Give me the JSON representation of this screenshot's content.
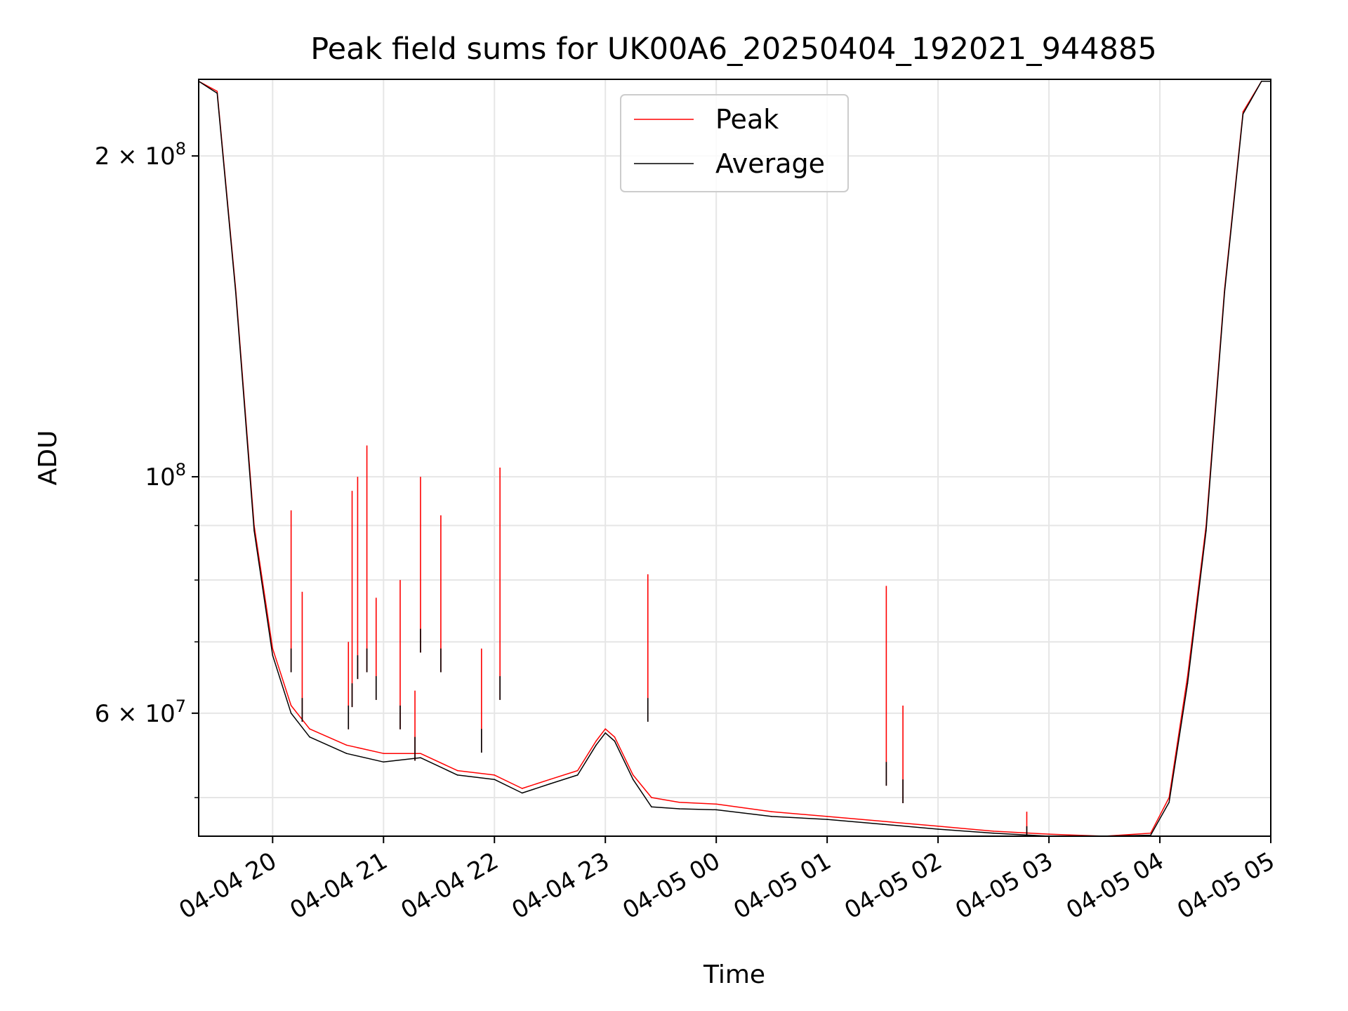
{
  "chart_data": {
    "type": "line",
    "title": "Peak field sums for UK00A6_20250404_192021_944885",
    "xlabel": "Time",
    "ylabel": "ADU",
    "yscale": "log",
    "ylim": [
      46000000,
      236000000
    ],
    "xlim": [
      "2025-04-04 19:20",
      "2025-04-05 05:00"
    ],
    "grid": true,
    "legend_position": "top-center",
    "x_tick_labels": [
      "04-04 20",
      "04-04 21",
      "04-04 22",
      "04-04 23",
      "04-05 00",
      "04-05 01",
      "04-05 02",
      "04-05 03",
      "04-05 04",
      "04-05 05"
    ],
    "x_ticks": [
      "2025-04-04 20:00",
      "2025-04-04 21:00",
      "2025-04-04 22:00",
      "2025-04-04 23:00",
      "2025-04-05 00:00",
      "2025-04-05 01:00",
      "2025-04-05 02:00",
      "2025-04-05 03:00",
      "2025-04-05 04:00",
      "2025-04-05 05:00"
    ],
    "y_major_ticks": [
      {
        "value": 200000000,
        "mantissa": "2",
        "times": "×",
        "base": "10",
        "exp": "8"
      },
      {
        "value": 100000000,
        "mantissa": "",
        "times": "",
        "base": "10",
        "exp": "8"
      },
      {
        "value": 60000000,
        "mantissa": "6",
        "times": "×",
        "base": "10",
        "exp": "7"
      }
    ],
    "y_minor_ticks": [
      50000000,
      70000000,
      80000000,
      90000000
    ],
    "series": [
      {
        "name": "Peak",
        "color": "#ff0000",
        "x": [
          "2025-04-04 19:20",
          "2025-04-04 19:30",
          "2025-04-04 19:40",
          "2025-04-04 19:50",
          "2025-04-04 20:00",
          "2025-04-04 20:10",
          "2025-04-04 20:20",
          "2025-04-04 20:40",
          "2025-04-04 21:00",
          "2025-04-04 21:20",
          "2025-04-04 21:40",
          "2025-04-04 22:00",
          "2025-04-04 22:15",
          "2025-04-04 22:30",
          "2025-04-04 22:45",
          "2025-04-04 22:55",
          "2025-04-04 23:00",
          "2025-04-04 23:05",
          "2025-04-04 23:15",
          "2025-04-04 23:25",
          "2025-04-04 23:40",
          "2025-04-05 00:00",
          "2025-04-05 00:30",
          "2025-04-05 01:00",
          "2025-04-05 01:30",
          "2025-04-05 02:00",
          "2025-04-05 02:30",
          "2025-04-05 03:00",
          "2025-04-05 03:30",
          "2025-04-05 03:55",
          "2025-04-05 04:05",
          "2025-04-05 04:15",
          "2025-04-05 04:25",
          "2025-04-05 04:35",
          "2025-04-05 04:45",
          "2025-04-05 04:55",
          "2025-04-05 05:00"
        ],
        "values": [
          235000000,
          230000000,
          150000000,
          90000000,
          69000000,
          61000000,
          58000000,
          56000000,
          55000000,
          55000000,
          53000000,
          52500000,
          51000000,
          52000000,
          53000000,
          56500000,
          58000000,
          57000000,
          52500000,
          50000000,
          49500000,
          49300000,
          48500000,
          48000000,
          47500000,
          47000000,
          46500000,
          46200000,
          46000000,
          46300000,
          50000000,
          65000000,
          90000000,
          150000000,
          220000000,
          235000000,
          235000000
        ]
      },
      {
        "name": "Average",
        "color": "#000000",
        "x": [
          "2025-04-04 19:20",
          "2025-04-04 19:30",
          "2025-04-04 19:40",
          "2025-04-04 19:50",
          "2025-04-04 20:00",
          "2025-04-04 20:10",
          "2025-04-04 20:20",
          "2025-04-04 20:40",
          "2025-04-04 21:00",
          "2025-04-04 21:20",
          "2025-04-04 21:40",
          "2025-04-04 22:00",
          "2025-04-04 22:15",
          "2025-04-04 22:30",
          "2025-04-04 22:45",
          "2025-04-04 22:55",
          "2025-04-04 23:00",
          "2025-04-04 23:05",
          "2025-04-04 23:15",
          "2025-04-04 23:25",
          "2025-04-04 23:40",
          "2025-04-05 00:00",
          "2025-04-05 00:30",
          "2025-04-05 01:00",
          "2025-04-05 01:30",
          "2025-04-05 02:00",
          "2025-04-05 02:30",
          "2025-04-05 03:00",
          "2025-04-05 03:30",
          "2025-04-05 03:55",
          "2025-04-05 04:05",
          "2025-04-05 04:15",
          "2025-04-05 04:25",
          "2025-04-05 04:35",
          "2025-04-05 04:45",
          "2025-04-05 04:55",
          "2025-04-05 05:00"
        ],
        "values": [
          235000000,
          229000000,
          149000000,
          89000000,
          68000000,
          60000000,
          57000000,
          55000000,
          54000000,
          54500000,
          52500000,
          52000000,
          50500000,
          51500000,
          52500000,
          56000000,
          57500000,
          56500000,
          52000000,
          49000000,
          48800000,
          48700000,
          48000000,
          47700000,
          47200000,
          46700000,
          46300000,
          46000000,
          45900000,
          46100000,
          49500000,
          64000000,
          89000000,
          149000000,
          219000000,
          235000000,
          235000000
        ]
      }
    ],
    "spikes": [
      {
        "x": "2025-04-04 20:10",
        "peak": 93000000,
        "average": 69000000
      },
      {
        "x": "2025-04-04 20:16",
        "peak": 78000000,
        "average": 62000000
      },
      {
        "x": "2025-04-04 20:41",
        "peak": 70000000,
        "average": 61000000
      },
      {
        "x": "2025-04-04 20:43",
        "peak": 97000000,
        "average": 64000000
      },
      {
        "x": "2025-04-04 20:46",
        "peak": 100000000,
        "average": 68000000
      },
      {
        "x": "2025-04-04 20:51",
        "peak": 107000000,
        "average": 69000000
      },
      {
        "x": "2025-04-04 20:56",
        "peak": 77000000,
        "average": 65000000
      },
      {
        "x": "2025-04-04 21:09",
        "peak": 80000000,
        "average": 61000000
      },
      {
        "x": "2025-04-04 21:17",
        "peak": 63000000,
        "average": 57000000
      },
      {
        "x": "2025-04-04 21:20",
        "peak": 100000000,
        "average": 72000000
      },
      {
        "x": "2025-04-04 21:31",
        "peak": 92000000,
        "average": 69000000
      },
      {
        "x": "2025-04-04 21:53",
        "peak": 69000000,
        "average": 58000000
      },
      {
        "x": "2025-04-04 22:03",
        "peak": 102000000,
        "average": 65000000
      },
      {
        "x": "2025-04-04 23:23",
        "peak": 81000000,
        "average": 62000000
      },
      {
        "x": "2025-04-05 01:32",
        "peak": 79000000,
        "average": 54000000
      },
      {
        "x": "2025-04-05 01:41",
        "peak": 61000000,
        "average": 52000000
      },
      {
        "x": "2025-04-05 02:48",
        "peak": 48500000,
        "average": 47000000
      }
    ]
  }
}
